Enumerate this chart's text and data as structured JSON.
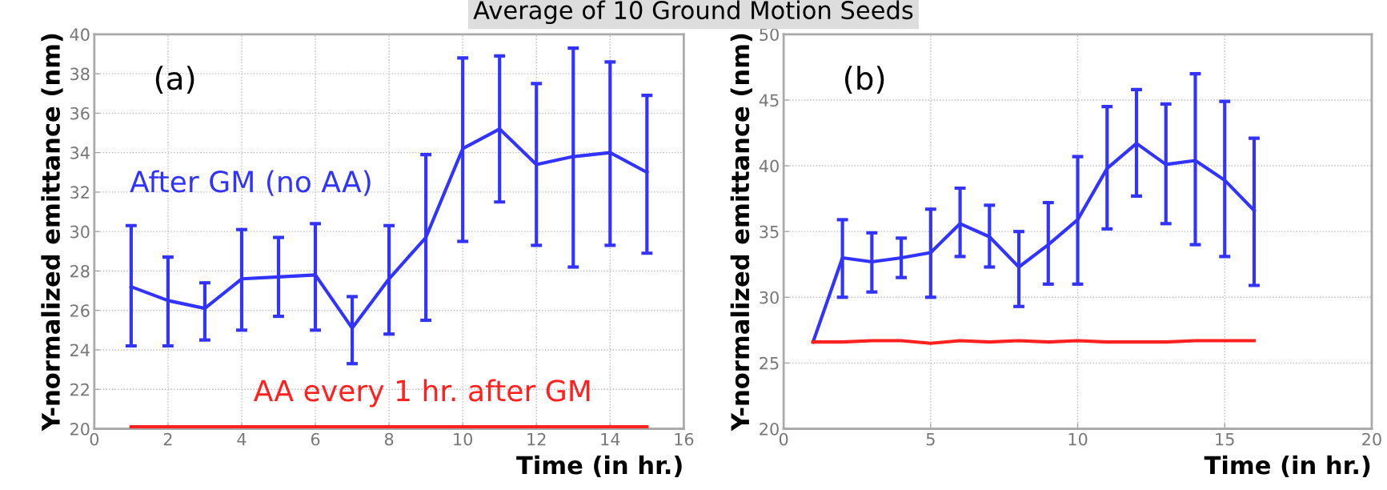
{
  "chart_data": [
    {
      "type": "line",
      "title": "Average of 10 Ground Motion Seeds",
      "xlabel": "Time (in hr.)",
      "ylabel": "Y-normalized emittance (nm)",
      "annotations": [
        "(a)"
      ],
      "x": [
        1,
        2,
        3,
        4,
        5,
        6,
        7,
        8,
        9,
        10,
        11,
        12,
        13,
        14,
        15
      ],
      "series": [
        {
          "name": "After GM (no AA)",
          "color": "#3333ff",
          "values": [
            27.2,
            26.5,
            26.1,
            27.6,
            27.7,
            27.8,
            25.1,
            27.6,
            29.7,
            34.2,
            35.2,
            33.4,
            33.8,
            34.0,
            33.0
          ],
          "errors": [
            [
              24.2,
              30.3
            ],
            [
              24.2,
              28.7
            ],
            [
              24.5,
              27.4
            ],
            [
              25.0,
              30.1
            ],
            [
              25.7,
              29.7
            ],
            [
              25.0,
              30.4
            ],
            [
              23.3,
              26.7
            ],
            [
              24.8,
              30.3
            ],
            [
              25.5,
              33.9
            ],
            [
              29.5,
              38.8
            ],
            [
              31.5,
              38.9
            ],
            [
              29.3,
              37.5
            ],
            [
              28.2,
              39.3
            ],
            [
              29.3,
              38.6
            ],
            [
              28.9,
              36.9
            ]
          ]
        },
        {
          "name": "AA every 1 hr. after GM",
          "color": "#ff2020",
          "values": [
            20.1,
            20.1,
            20.1,
            20.1,
            20.1,
            20.1,
            20.1,
            20.1,
            20.1,
            20.1,
            20.1,
            20.1,
            20.1,
            20.1,
            20.1
          ]
        }
      ],
      "xlim": [
        0,
        16
      ],
      "xticks": [
        0,
        2,
        4,
        6,
        8,
        10,
        12,
        14,
        16
      ],
      "ylim": [
        20,
        40
      ],
      "yticks": [
        20,
        22,
        24,
        26,
        28,
        30,
        32,
        34,
        36,
        38,
        40
      ],
      "grid": true,
      "line_style": "solid"
    },
    {
      "type": "line",
      "xlabel": "Time (in hr.)",
      "ylabel": "Y-normalized emittance (nm)",
      "annotations": [
        "(b)"
      ],
      "x": [
        1,
        2,
        3,
        4,
        5,
        6,
        7,
        8,
        9,
        10,
        11,
        12,
        13,
        14,
        15,
        16
      ],
      "series": [
        {
          "color": "#3333ff",
          "values": [
            26.6,
            33.0,
            32.7,
            33.0,
            33.4,
            35.6,
            34.6,
            32.3,
            34.0,
            35.9,
            39.8,
            41.7,
            40.1,
            40.4,
            38.9,
            36.6
          ],
          "errors": [
            null,
            [
              30.0,
              35.9
            ],
            [
              30.4,
              34.9
            ],
            [
              31.5,
              34.5
            ],
            [
              30.0,
              36.7
            ],
            [
              33.1,
              38.3
            ],
            [
              32.3,
              37.0
            ],
            [
              29.3,
              35.0
            ],
            [
              31.0,
              37.2
            ],
            [
              31.0,
              40.7
            ],
            [
              35.2,
              44.5
            ],
            [
              37.7,
              45.8
            ],
            [
              35.6,
              44.7
            ],
            [
              34.0,
              47.0
            ],
            [
              33.1,
              44.9
            ],
            [
              30.9,
              42.1
            ]
          ]
        },
        {
          "color": "#ff2020",
          "values": [
            26.6,
            26.6,
            26.7,
            26.7,
            26.5,
            26.7,
            26.6,
            26.7,
            26.6,
            26.7,
            26.6,
            26.6,
            26.6,
            26.7,
            26.7,
            26.7
          ]
        }
      ],
      "xlim": [
        0,
        20
      ],
      "xticks": [
        0,
        5,
        10,
        15,
        20
      ],
      "ylim": [
        20,
        50
      ],
      "yticks": [
        20,
        25,
        30,
        35,
        40,
        45,
        50
      ],
      "grid": true,
      "line_style": "solid"
    }
  ]
}
